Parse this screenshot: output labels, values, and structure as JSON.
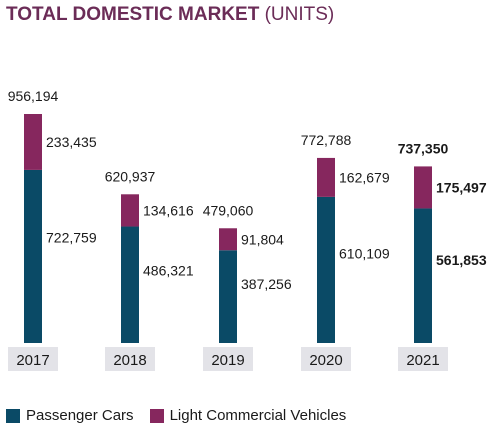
{
  "title": {
    "bold": "TOTAL DOMESTIC MARKET",
    "rest": " (UNITS)"
  },
  "colors": {
    "passenger": "#0a4a66",
    "lcv": "#86275e",
    "year_bg": "#e3e3e8"
  },
  "chart_data": {
    "type": "bar",
    "stacked": true,
    "title": "TOTAL DOMESTIC MARKET (UNITS)",
    "categories": [
      "2017",
      "2018",
      "2019",
      "2020",
      "2021"
    ],
    "series": [
      {
        "name": "Passenger Cars",
        "values": [
          722759,
          486321,
          387256,
          610109,
          561853
        ]
      },
      {
        "name": "Light Commercial Vehicles",
        "values": [
          233435,
          134616,
          91804,
          162679,
          175497
        ]
      }
    ],
    "totals": [
      956194,
      620937,
      479060,
      772788,
      737350
    ],
    "series_labels": [
      [
        "722,759",
        "486,321",
        "387,256",
        "610,109",
        "561,853"
      ],
      [
        "233,435",
        "134,616",
        "91,804",
        "162,679",
        "175,497"
      ]
    ],
    "total_labels": [
      "956,194",
      "620,937",
      "479,060",
      "772,788",
      "737,350"
    ],
    "highlight_index": 4,
    "legend": "bottom-left",
    "grid": false
  }
}
